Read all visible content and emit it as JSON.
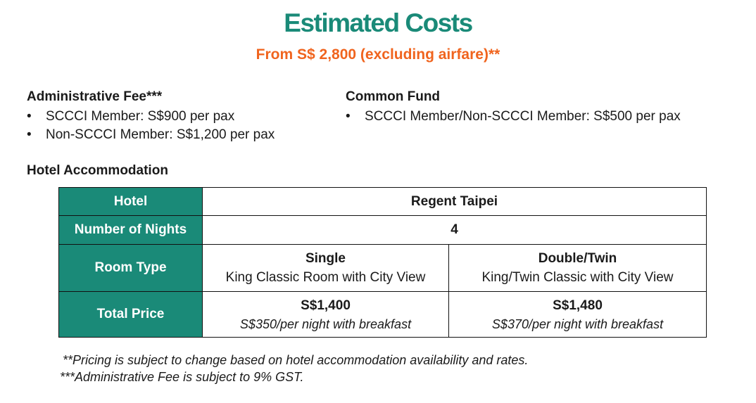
{
  "header": {
    "title": "Estimated Costs",
    "subtitle": "From S$ 2,800 (excluding airfare)**"
  },
  "admin_fee": {
    "heading": "Administrative Fee***",
    "items": [
      "SCCCI Member: S$900 per pax",
      "Non-SCCCI Member: S$1,200 per pax"
    ]
  },
  "common_fund": {
    "heading": "Common Fund",
    "items": [
      "SCCCI Member/Non-SCCCI Member: S$500 per pax"
    ]
  },
  "bullet_glyph": "•",
  "hotel_section": {
    "heading": "Hotel Accommodation",
    "rows": {
      "hotel": {
        "label": "Hotel",
        "value": "Regent Taipei"
      },
      "nights": {
        "label": "Number of Nights",
        "value": "4"
      },
      "room_type": {
        "label": "Room Type",
        "single": {
          "title": "Single",
          "desc": "King Classic Room with City View"
        },
        "double": {
          "title": "Double/Twin",
          "desc": "King/Twin Classic with City View"
        }
      },
      "total_price": {
        "label": "Total Price",
        "single": {
          "price": "S$1,400",
          "note": "S$350/per night with breakfast"
        },
        "double": {
          "price": "S$1,480",
          "note": "S$370/per night with breakfast"
        }
      }
    }
  },
  "notes": [
    "**Pricing is subject to change based on hotel accommodation availability and rates.",
    "***Administrative Fee is subject to 9% GST."
  ],
  "colors": {
    "title": "#1a8a78",
    "subtitle": "#f0641e",
    "table_header_bg": "#1a8a78"
  }
}
